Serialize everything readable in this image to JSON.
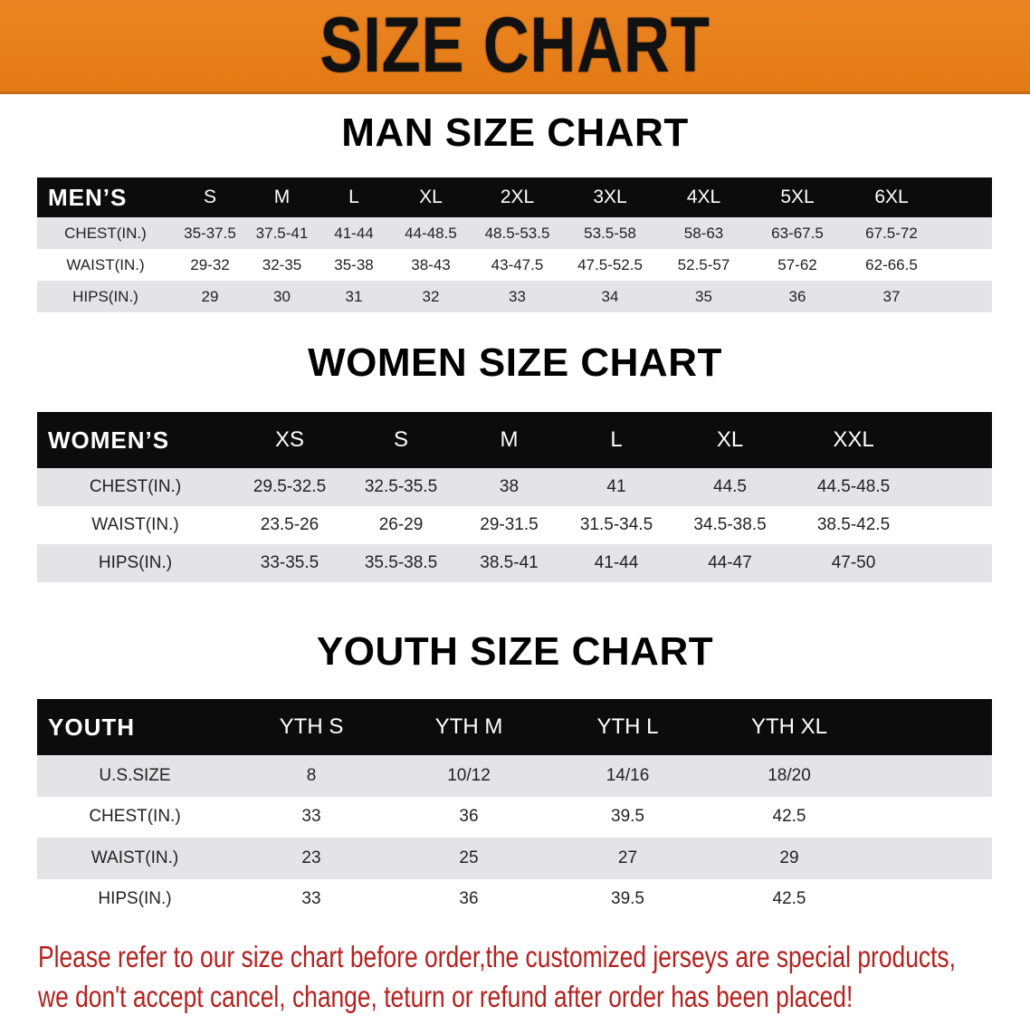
{
  "banner_title": "SIZE CHART",
  "men": {
    "title": "MAN SIZE CHART",
    "header": [
      "MEN’S",
      "S",
      "M",
      "L",
      "XL",
      "2XL",
      "3XL",
      "4XL",
      "5XL",
      "6XL"
    ],
    "rows": [
      [
        "CHEST(IN.)",
        "35-37.5",
        "37.5-41",
        "41-44",
        "44-48.5",
        "48.5-53.5",
        "53.5-58",
        "58-63",
        "63-67.5",
        "67.5-72"
      ],
      [
        "WAIST(IN.)",
        "29-32",
        "32-35",
        "35-38",
        "38-43",
        "43-47.5",
        "47.5-52.5",
        "52.5-57",
        "57-62",
        "62-66.5"
      ],
      [
        "HIPS(IN.)",
        "29",
        "30",
        "31",
        "32",
        "33",
        "34",
        "35",
        "36",
        "37"
      ]
    ]
  },
  "women": {
    "title": "WOMEN SIZE CHART",
    "header": [
      "WOMEN’S",
      "XS",
      "S",
      "M",
      "L",
      "XL",
      "XXL"
    ],
    "rows": [
      [
        "CHEST(IN.)",
        "29.5-32.5",
        "32.5-35.5",
        "38",
        "41",
        "44.5",
        "44.5-48.5"
      ],
      [
        "WAIST(IN.)",
        "23.5-26",
        "26-29",
        "29-31.5",
        "31.5-34.5",
        "34.5-38.5",
        "38.5-42.5"
      ],
      [
        "HIPS(IN.)",
        "33-35.5",
        "35.5-38.5",
        "38.5-41",
        "41-44",
        "44-47",
        "47-50"
      ]
    ]
  },
  "youth": {
    "title": "YOUTH SIZE CHART",
    "header": [
      "YOUTH",
      "YTH S",
      "YTH M",
      "YTH L",
      "YTH XL"
    ],
    "rows": [
      [
        "U.S.SIZE",
        "8",
        "10/12",
        "14/16",
        "18/20"
      ],
      [
        "CHEST(IN.)",
        "33",
        "36",
        "39.5",
        "42.5"
      ],
      [
        "WAIST(IN.)",
        "23",
        "25",
        "27",
        "29"
      ],
      [
        "HIPS(IN.)",
        "33",
        "36",
        "39.5",
        "42.5"
      ]
    ]
  },
  "notice": {
    "line1": "Please refer to our size chart before order,the customized jerseys are special products,",
    "line2": "we don't accept cancel, change, teturn or refund after order has been placed!"
  },
  "colors": {
    "banner": "#e8801c",
    "header_row": "#0c0c0c",
    "stripe": "#e4e4e6",
    "notice": "#b3221f"
  }
}
